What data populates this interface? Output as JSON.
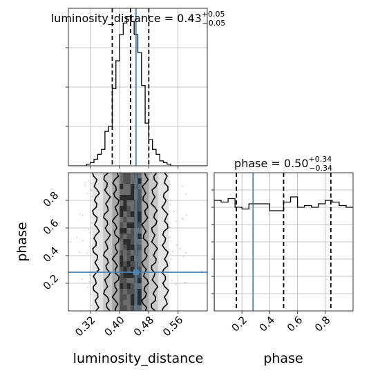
{
  "chart_data": [
    {
      "type": "histogram",
      "panel": "top-left",
      "title_main": "luminosity_distance = 0.43",
      "title_sup": "+0.05",
      "title_sub": "−0.05",
      "xlim": [
        0.26,
        0.64
      ],
      "bins_x": [
        0.265,
        0.275,
        0.285,
        0.295,
        0.305,
        0.315,
        0.325,
        0.335,
        0.345,
        0.355,
        0.365,
        0.375,
        0.385,
        0.395,
        0.405,
        0.415,
        0.425,
        0.435,
        0.445,
        0.455,
        0.465,
        0.475,
        0.485,
        0.495,
        0.505,
        0.515,
        0.525,
        0.535,
        0.545,
        0.555,
        0.565,
        0.575,
        0.585,
        0.595,
        0.605,
        0.615,
        0.625,
        0.635
      ],
      "counts": [
        0,
        0,
        0,
        0,
        0,
        1,
        2,
        4,
        7,
        10,
        21,
        24,
        47,
        64,
        80,
        87,
        91,
        88,
        80,
        69,
        49,
        26,
        16,
        10,
        7,
        3,
        2,
        1,
        0,
        0,
        0,
        0,
        0,
        0,
        0,
        0,
        0,
        0
      ],
      "ylim": [
        0,
        96
      ],
      "quantiles": [
        0.38,
        0.43,
        0.48
      ],
      "truth": 0.445,
      "grid": true
    },
    {
      "type": "scatter_density",
      "panel": "bottom-left",
      "xlabel": "luminosity_distance",
      "ylabel": "phase",
      "xlim": [
        0.26,
        0.64
      ],
      "ylim": [
        0.0,
        1.0
      ],
      "xticks": [
        "0.32",
        "0.40",
        "0.48",
        "0.56"
      ],
      "xtick_values": [
        0.32,
        0.4,
        0.48,
        0.56
      ],
      "yticks": [
        "0.2",
        "0.4",
        "0.6",
        "0.8"
      ],
      "ytick_values": [
        0.2,
        0.4,
        0.6,
        0.8
      ],
      "truth": [
        0.445,
        0.28
      ],
      "density_peak": [
        0.43,
        0.5
      ],
      "grid": true
    },
    {
      "type": "histogram",
      "panel": "bottom-right",
      "title_main": "phase = 0.50",
      "title_sup": "+0.34",
      "title_sub": "−0.34",
      "xlabel": "phase",
      "xlim": [
        0.0,
        1.0
      ],
      "xticks": [
        "0.2",
        "0.4",
        "0.6",
        "0.8"
      ],
      "xtick_values": [
        0.2,
        0.4,
        0.6,
        0.8
      ],
      "bins_x": [
        0.025,
        0.075,
        0.125,
        0.175,
        0.225,
        0.275,
        0.325,
        0.375,
        0.425,
        0.475,
        0.525,
        0.575,
        0.625,
        0.675,
        0.725,
        0.775,
        0.825,
        0.875,
        0.925,
        0.975
      ],
      "counts": [
        64,
        63,
        65,
        60,
        59,
        62,
        62,
        62,
        58,
        58,
        63,
        66,
        60,
        61,
        60,
        62,
        64,
        63,
        61,
        60
      ],
      "ylim": [
        0,
        80
      ],
      "quantiles": [
        0.16,
        0.5,
        0.84
      ],
      "truth": 0.28,
      "grid": true
    }
  ],
  "colors": {
    "truth": "#4682b4",
    "line": "#000000",
    "grid": "#b0b0b0",
    "points": "#9a9a9a"
  }
}
